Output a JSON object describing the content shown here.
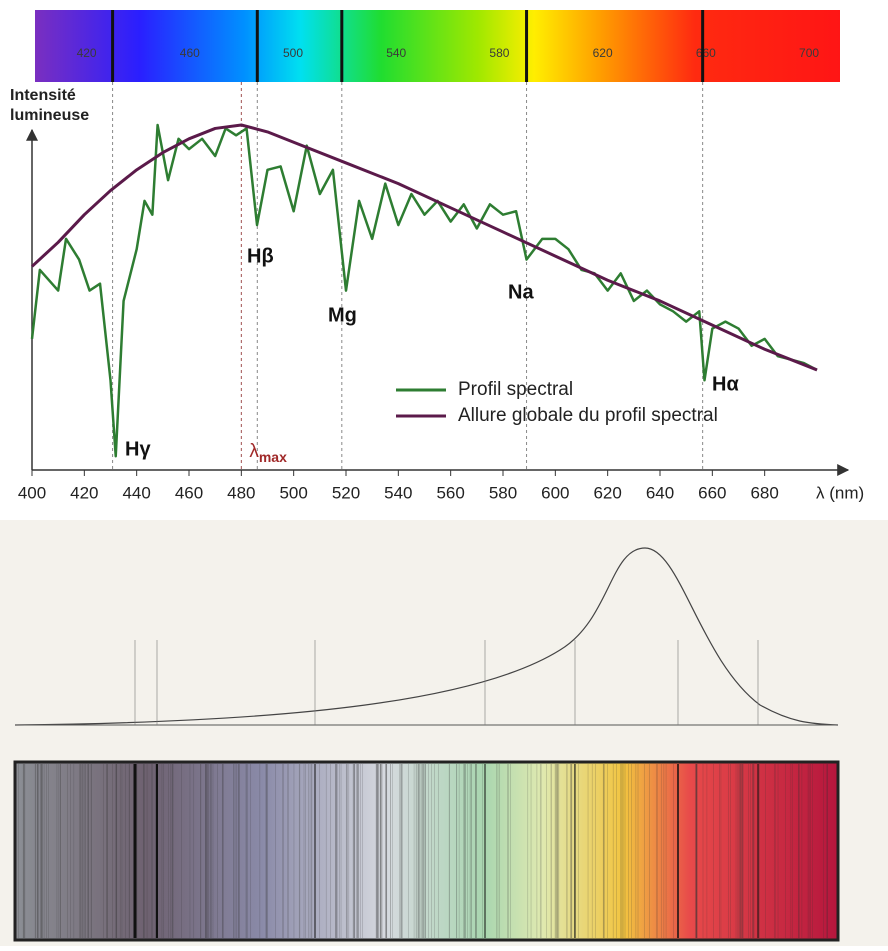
{
  "chart_data": {
    "type": "line",
    "ylabel": [
      "Intensité",
      "lumineuse"
    ],
    "xlabel": "λ (nm)",
    "xlim": [
      400,
      700
    ],
    "xticks": [
      400,
      420,
      440,
      460,
      480,
      500,
      520,
      540,
      560,
      580,
      600,
      620,
      640,
      660,
      680
    ],
    "ylim": [
      0,
      100
    ],
    "legend": "lower right",
    "series": [
      {
        "name": "Profil spectral",
        "color": "#2e7d32",
        "x": [
          400,
          403,
          410,
          413,
          418,
          422,
          426,
          430,
          432,
          435,
          440,
          443,
          446,
          448,
          452,
          456,
          460,
          465,
          470,
          474,
          478,
          482,
          486,
          490,
          495,
          500,
          505,
          510,
          515,
          520,
          525,
          530,
          535,
          540,
          545,
          550,
          555,
          560,
          565,
          570,
          575,
          580,
          585,
          589,
          595,
          600,
          605,
          610,
          615,
          620,
          625,
          630,
          635,
          640,
          645,
          650,
          655,
          657,
          660,
          665,
          670,
          675,
          680,
          685,
          690,
          695,
          700
        ],
        "values": [
          38,
          58,
          52,
          67,
          61,
          52,
          54,
          26,
          4,
          49,
          64,
          78,
          74,
          100,
          84,
          96,
          93,
          96,
          91,
          99,
          97,
          99,
          71,
          87,
          88,
          75,
          94,
          80,
          87,
          52,
          78,
          67,
          83,
          71,
          80,
          74,
          78,
          72,
          77,
          70,
          77,
          74,
          75,
          61,
          67,
          67,
          64,
          58,
          57,
          52,
          57,
          49,
          52,
          48,
          46,
          43,
          46,
          26,
          41,
          43,
          41,
          36,
          38,
          33,
          32,
          31,
          29
        ]
      },
      {
        "name": "Allure globale du profil spectral",
        "color": "#5b1a4a",
        "x": [
          400,
          410,
          420,
          430,
          440,
          450,
          460,
          470,
          480,
          490,
          500,
          520,
          540,
          560,
          580,
          600,
          620,
          640,
          660,
          680,
          700
        ],
        "values": [
          59,
          66,
          74,
          81,
          87,
          92,
          96,
          99,
          100,
          98,
          95,
          89,
          83,
          76,
          69,
          62,
          55,
          49,
          42,
          35,
          29
        ]
      }
    ],
    "annotations": [
      {
        "label": "Hγ",
        "x": 430.8
      },
      {
        "label": "Hβ",
        "x": 486.1
      },
      {
        "label": "Mg",
        "x": 518.4
      },
      {
        "label": "Na",
        "x": 589
      },
      {
        "label": "Hα",
        "x": 656.3
      }
    ],
    "lambda_max": {
      "symbol": "λ",
      "subscript": "max",
      "x": 480
    },
    "spectrum_bar": {
      "xlim": [
        400,
        712
      ],
      "ticks": [
        420,
        460,
        500,
        540,
        580,
        620,
        660,
        700
      ]
    }
  }
}
